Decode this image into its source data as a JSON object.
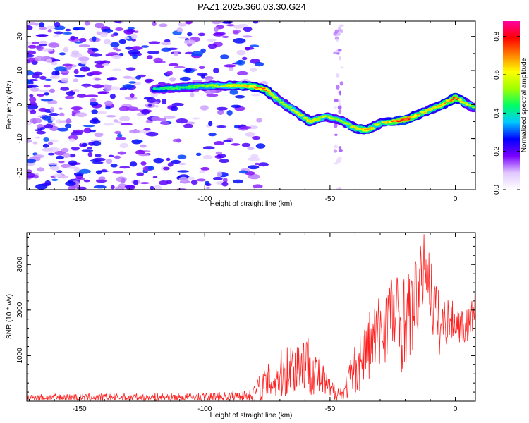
{
  "figure": {
    "title": "PAZ1.2025.360.03.30.G24"
  },
  "chart_data": [
    {
      "type": "heatmap",
      "name": "spectrogram",
      "xlabel": "Height of straight line (km)",
      "ylabel": "Frequency (Hz)",
      "xlim": [
        -171,
        8
      ],
      "ylim": [
        -25,
        24.5
      ],
      "xticks": [
        -150,
        -100,
        -50,
        0
      ],
      "yticks": [
        -20,
        -10,
        0,
        10,
        20
      ],
      "colorbar": {
        "label": "Normalized spectral amplitude",
        "range": [
          0,
          0.88
        ],
        "ticks": [
          "0.0",
          "0.2",
          "0.4",
          "0.6",
          "0.8"
        ],
        "tick_values": [
          0.0,
          0.2,
          0.4,
          0.6,
          0.8
        ],
        "colors": [
          "#ffffff",
          "#e0c8ff",
          "#7a00ff",
          "#0000ff",
          "#00c8ff",
          "#00ff64",
          "#a0ff00",
          "#ffff00",
          "#ff8000",
          "#ff0000",
          "#ff00a0"
        ]
      },
      "ridge": {
        "x": [
          -120,
          -110,
          -100,
          -90,
          -82,
          -76,
          -70,
          -64,
          -58,
          -52,
          -46,
          -40,
          -35,
          -30,
          -25,
          -20,
          -15,
          -10,
          -5,
          0,
          5,
          8
        ],
        "y": [
          4.5,
          5.0,
          5.5,
          5.5,
          5.5,
          4.5,
          1.0,
          -2.0,
          -5.0,
          -3.5,
          -4.5,
          -7.0,
          -7.5,
          -5.5,
          -5.0,
          -4.5,
          -3.0,
          -1.5,
          0.0,
          2.0,
          0.0,
          -1.0
        ],
        "amplitude": [
          0.45,
          0.5,
          0.55,
          0.6,
          0.7,
          0.75,
          0.55,
          0.6,
          0.65,
          0.6,
          0.55,
          0.65,
          0.7,
          0.6,
          0.75,
          0.85,
          0.7,
          0.65,
          0.7,
          0.8,
          0.6,
          0.5
        ]
      },
      "noise_region_x": [
        -171,
        -76
      ],
      "noise_amplitude": 0.3
    },
    {
      "type": "line",
      "name": "snr",
      "xlabel": "Height of straight line (km)",
      "ylabel": "SNR (10 * v/v)",
      "xlim": [
        -171,
        8
      ],
      "ylim": [
        0,
        3700
      ],
      "xticks": [
        -150,
        -100,
        -50,
        0
      ],
      "yticks": [
        1000,
        2000,
        3000
      ],
      "series_color": "#ff2020",
      "envelope": {
        "x": [
          -171,
          -100,
          -82,
          -78,
          -72,
          -66,
          -60,
          -56,
          -50,
          -45,
          -40,
          -35,
          -30,
          -26,
          -22,
          -18,
          -14,
          -12,
          -9,
          -6,
          -3,
          0,
          3,
          6,
          8
        ],
        "base": [
          80,
          90,
          130,
          300,
          500,
          700,
          900,
          650,
          250,
          150,
          700,
          1200,
          1500,
          2000,
          1700,
          1900,
          2500,
          3100,
          2200,
          1600,
          1800,
          1750,
          1600,
          1700,
          2100
        ],
        "spread": [
          80,
          90,
          120,
          300,
          500,
          650,
          700,
          550,
          250,
          150,
          600,
          800,
          900,
          900,
          1100,
          1000,
          900,
          700,
          800,
          700,
          500,
          400,
          400,
          400,
          400
        ]
      },
      "n_samples": 900
    }
  ]
}
